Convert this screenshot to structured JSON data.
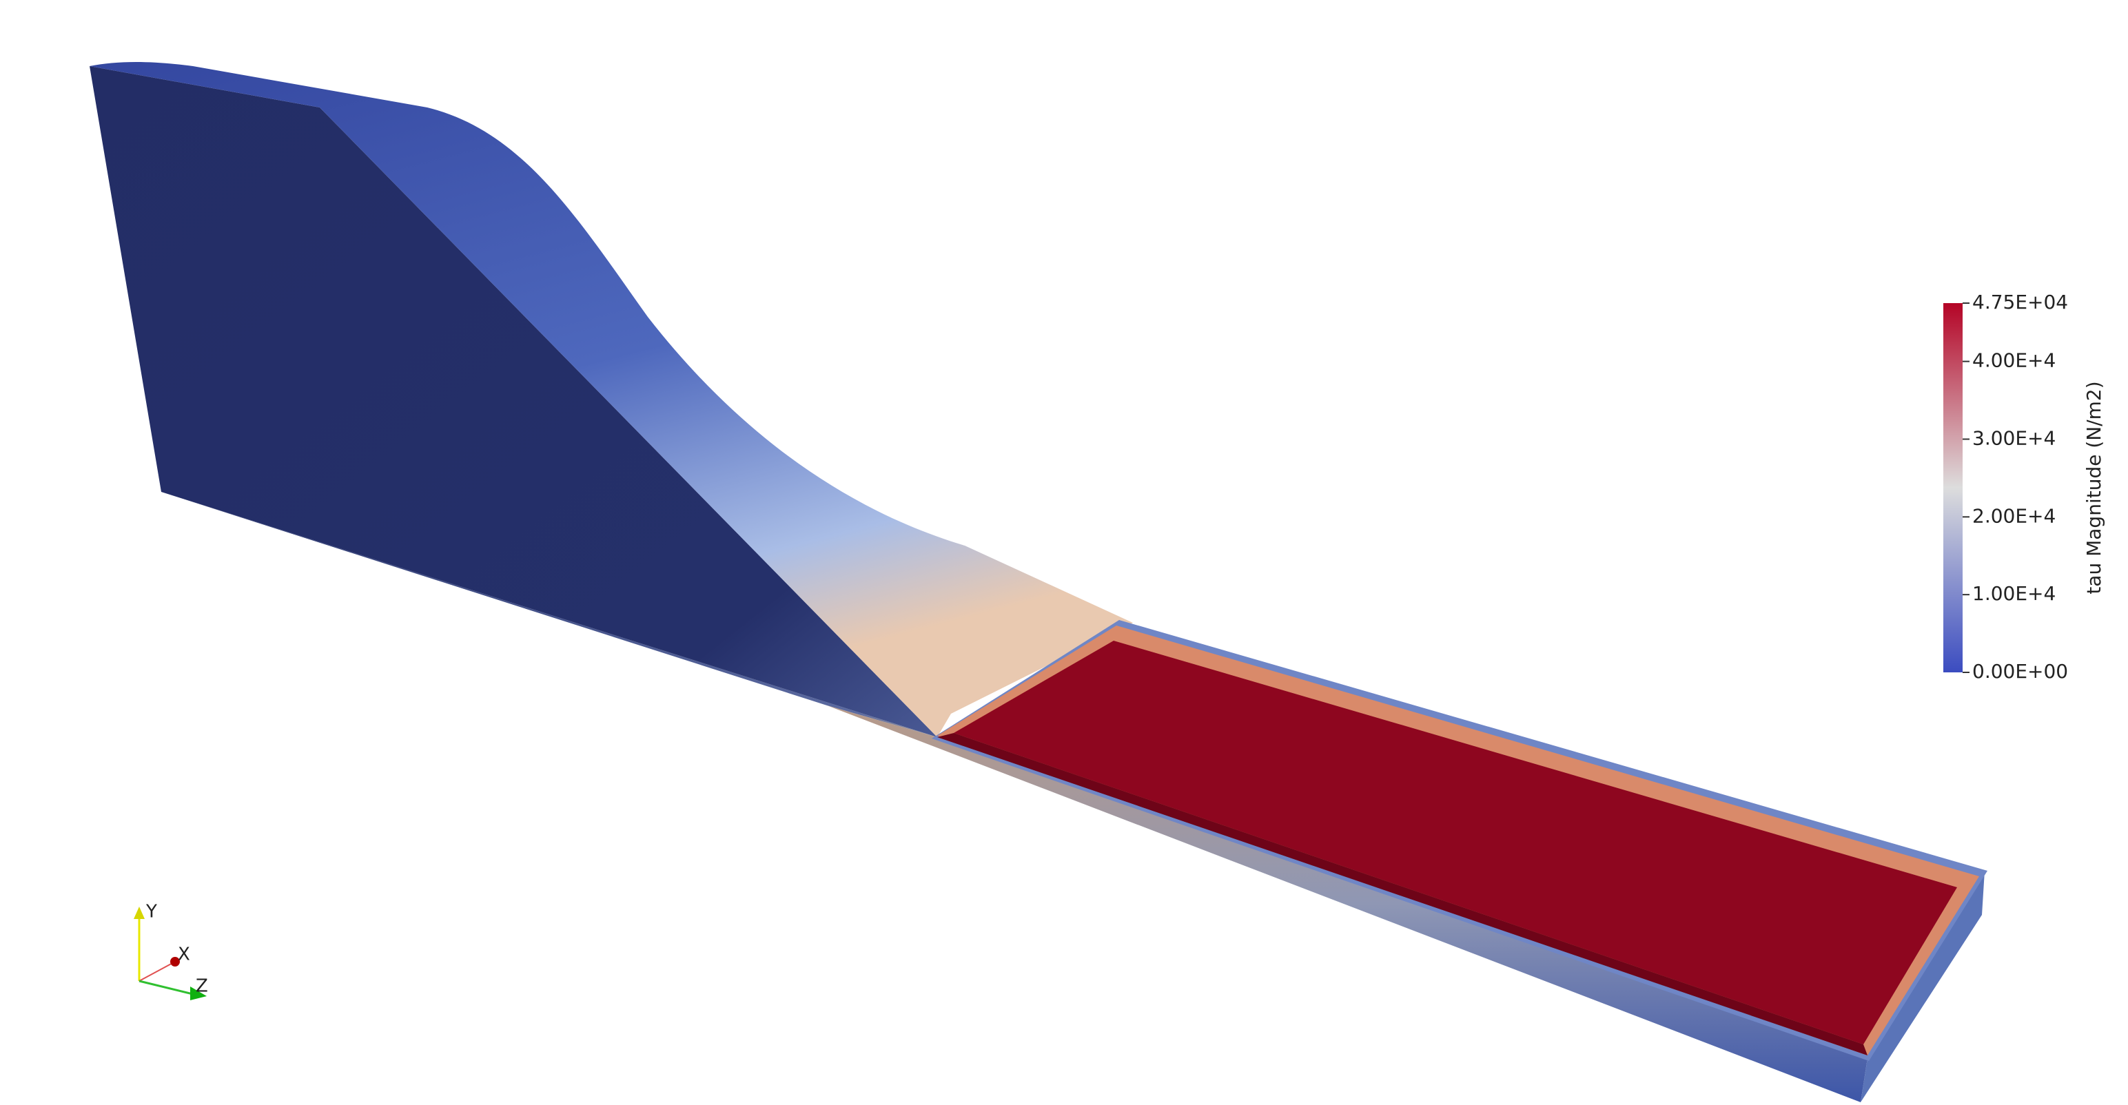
{
  "colorbar": {
    "title": "tau Magnitude (N/m2)",
    "range": [
      0,
      47500
    ],
    "ticks": [
      {
        "value": 47500,
        "label": "4.75E+04"
      },
      {
        "value": 40000,
        "label": "4.00E+4"
      },
      {
        "value": 30000,
        "label": "3.00E+4"
      },
      {
        "value": 20000,
        "label": "2.00E+4"
      },
      {
        "value": 10000,
        "label": "1.00E+4"
      },
      {
        "value": 0,
        "label": "0.00E+00"
      }
    ],
    "colormap": [
      "#3b4cc0",
      "#dddddd",
      "#b40426"
    ]
  },
  "axes_triad": {
    "y_label": "Y",
    "x_label": "X",
    "z_label": "Z"
  }
}
